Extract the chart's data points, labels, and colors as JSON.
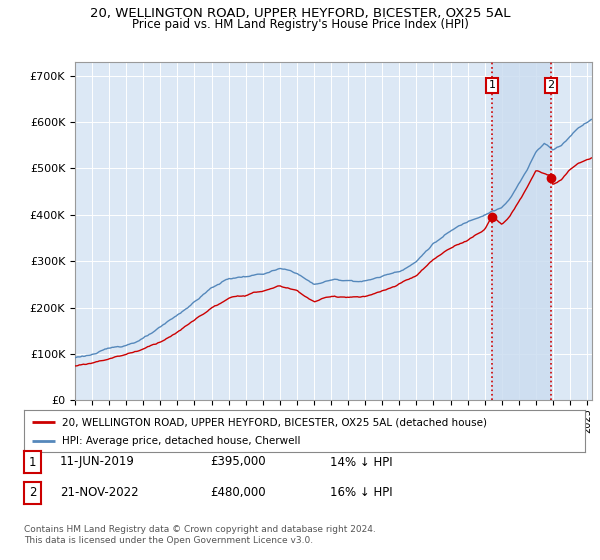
{
  "title": "20, WELLINGTON ROAD, UPPER HEYFORD, BICESTER, OX25 5AL",
  "subtitle": "Price paid vs. HM Land Registry's House Price Index (HPI)",
  "ylabel_ticks": [
    "£0",
    "£100K",
    "£200K",
    "£300K",
    "£400K",
    "£500K",
    "£600K",
    "£700K"
  ],
  "ytick_values": [
    0,
    100000,
    200000,
    300000,
    400000,
    500000,
    600000,
    700000
  ],
  "ylim": [
    0,
    730000
  ],
  "xlim_start": 1995.0,
  "xlim_end": 2025.3,
  "hpi_color": "#5588bb",
  "price_color": "#cc0000",
  "vline_color": "#cc0000",
  "shade_color": "#ccddf0",
  "transaction1_x": 2019.44,
  "transaction1_y": 395000,
  "transaction2_x": 2022.89,
  "transaction2_y": 480000,
  "legend_line1": "20, WELLINGTON ROAD, UPPER HEYFORD, BICESTER, OX25 5AL (detached house)",
  "legend_line2": "HPI: Average price, detached house, Cherwell",
  "table_row1": [
    "1",
    "11-JUN-2019",
    "£395,000",
    "14% ↓ HPI"
  ],
  "table_row2": [
    "2",
    "21-NOV-2022",
    "£480,000",
    "16% ↓ HPI"
  ],
  "footnote": "Contains HM Land Registry data © Crown copyright and database right 2024.\nThis data is licensed under the Open Government Licence v3.0.",
  "background_color": "#ffffff",
  "plot_bg_color": "#dce8f5"
}
